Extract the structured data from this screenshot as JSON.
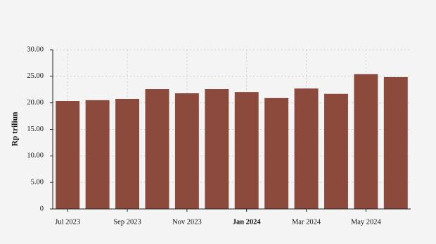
{
  "chart_data": {
    "type": "bar",
    "y_label": "Rp triliun",
    "categories": [
      "Jul 2023",
      null,
      "Sep 2023",
      null,
      "Nov 2023",
      null,
      "Jan 2024",
      null,
      "Mar 2024",
      null,
      "May 2024",
      null
    ],
    "values": [
      20.35,
      20.5,
      20.75,
      22.6,
      21.8,
      22.6,
      22.05,
      20.9,
      22.7,
      21.7,
      25.4,
      24.85
    ],
    "color": "#8b4a3c",
    "ylim": [
      0,
      30
    ],
    "yticks": [
      0,
      {
        "value": 5,
        "label": "5.00"
      },
      {
        "value": 10,
        "label": "10.00"
      },
      {
        "value": 15,
        "label": "15.00"
      },
      {
        "value": 20,
        "label": "20.00"
      },
      {
        "value": 25,
        "label": "25.00"
      },
      {
        "value": 30,
        "label": "30.00"
      }
    ],
    "grid": true,
    "bold_category_index": 6
  }
}
